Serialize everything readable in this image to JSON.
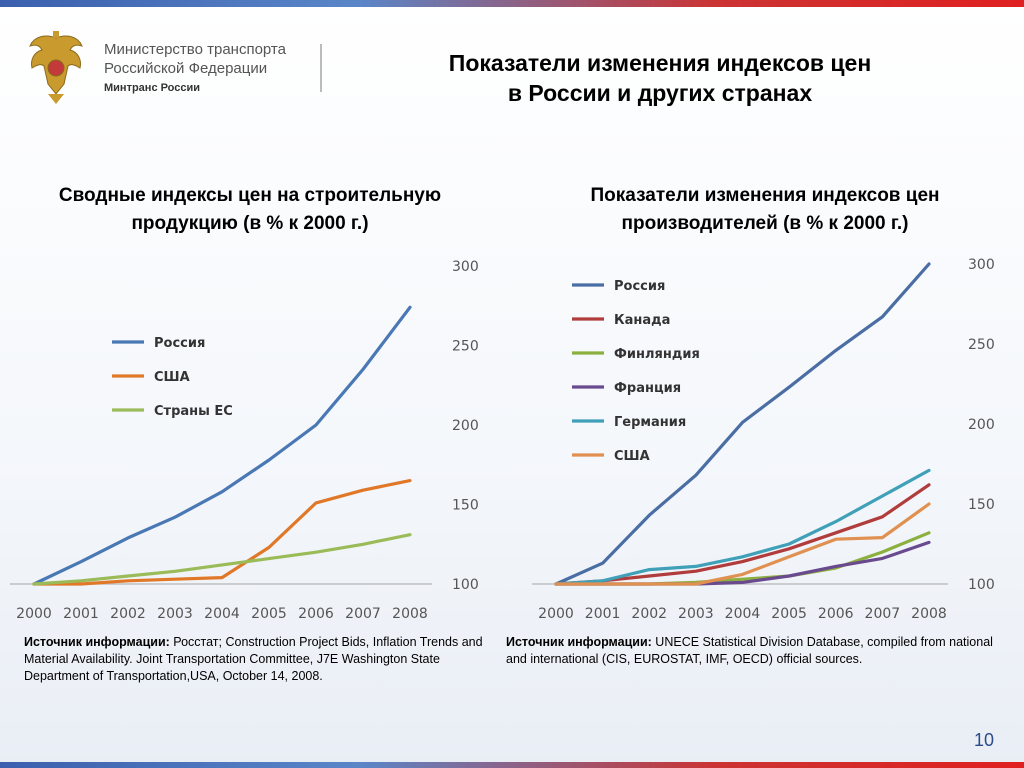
{
  "header": {
    "ministry_line1": "Министерство транспорта",
    "ministry_line2": "Российской Федерации",
    "ministry_line3": "Минтранс России",
    "title_line1": "Показатели изменения индексов цен",
    "title_line2": "в России и других странах"
  },
  "left": {
    "subtitle_line1": "Сводные индексы цен на строительную",
    "subtitle_line2": "продукцию (в % к 2000 г.)",
    "source_label": "Источник информации:",
    "source_text": "Росстат; Construction Project Bids, Inflation Trends and Material Availability. Joint Transportation Committee, J7E Washington State Department of Transportation,USA, October 14, 2008."
  },
  "right": {
    "subtitle_line1": "Показатели изменения индексов цен",
    "subtitle_line2": "производителей (в % к 2000 г.)",
    "source_label": "Источник информации:",
    "source_text": "UNECE Statistical Division Database, compiled from national and international (CIS, EUROSTAT, IMF, OECD) official sources."
  },
  "page_number": "10",
  "chart_data": [
    {
      "type": "line",
      "title": "Сводные индексы цен на строительную продукцию (в % к 2000 г.)",
      "x": [
        "2000",
        "2001",
        "2002",
        "2003",
        "2004",
        "2005",
        "2006",
        "2007",
        "2008"
      ],
      "ylim": [
        100,
        300
      ],
      "yticks": [
        100,
        150,
        200,
        250,
        300
      ],
      "legend_position": "top-left",
      "series": [
        {
          "name": "Россия",
          "color": "#4a78b4",
          "values": [
            100,
            114,
            129,
            142,
            158,
            178,
            200,
            235,
            274
          ]
        },
        {
          "name": "США",
          "color": "#e07828",
          "values": [
            100,
            100,
            102,
            103,
            104,
            123,
            151,
            159,
            165
          ]
        },
        {
          "name": "Страны ЕС",
          "color": "#9bbb59",
          "values": [
            100,
            102,
            105,
            108,
            112,
            116,
            120,
            125,
            131
          ]
        }
      ]
    },
    {
      "type": "line",
      "title": "Показатели изменения индексов цен производителей (в % к 2000 г.)",
      "x": [
        "2000",
        "2001",
        "2002",
        "2003",
        "2004",
        "2005",
        "2006",
        "2007",
        "2008"
      ],
      "ylim": [
        100,
        300
      ],
      "yticks": [
        100,
        150,
        200,
        250,
        300
      ],
      "legend_position": "top-left",
      "series": [
        {
          "name": "Россия",
          "color": "#4a6ea4",
          "values": [
            100,
            113,
            143,
            168,
            201,
            223,
            246,
            267,
            300
          ]
        },
        {
          "name": "Канада",
          "color": "#b03c3c",
          "values": [
            100,
            102,
            105,
            108,
            114,
            122,
            132,
            142,
            162
          ]
        },
        {
          "name": "Финляндия",
          "color": "#8cb040",
          "values": [
            100,
            100,
            100,
            101,
            103,
            105,
            110,
            120,
            132
          ]
        },
        {
          "name": "Франция",
          "color": "#6a4a8e",
          "values": [
            100,
            100,
            100,
            100,
            101,
            105,
            111,
            116,
            126
          ]
        },
        {
          "name": "Германия",
          "color": "#3fa0b8",
          "values": [
            100,
            102,
            109,
            111,
            117,
            125,
            139,
            155,
            171
          ]
        },
        {
          "name": "США",
          "color": "#e09050",
          "values": [
            100,
            100,
            100,
            100,
            106,
            117,
            128,
            129,
            150
          ]
        }
      ]
    }
  ]
}
